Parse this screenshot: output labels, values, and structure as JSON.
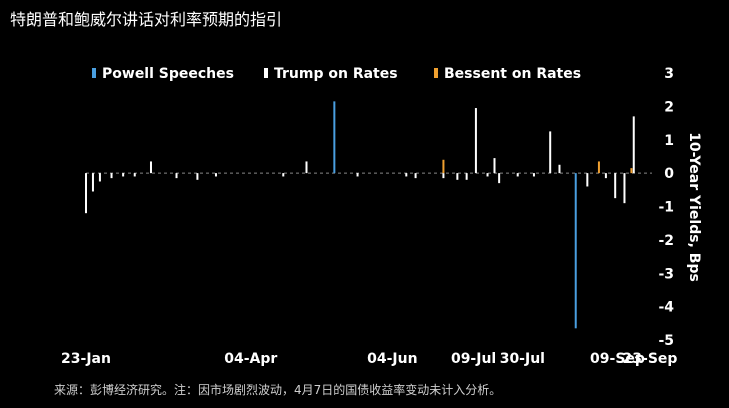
{
  "title": "特朗普和鲍威尔讲话对利率预期的指引",
  "source": "来源：彭博经济研究。注：因市场剧烈波动，4月7日的国债收益率变动未计入分析。",
  "colors": {
    "powell": "#4a9fe0",
    "trump": "#ffffff",
    "bessent": "#f0a030",
    "zero": "#888888",
    "bg": "#000000"
  },
  "chart_data": {
    "type": "bar",
    "ylabel": "10-Year Yields, Bps",
    "ylim": [
      -5,
      3
    ],
    "yticks": [
      "3",
      "2",
      "1",
      "0",
      "-1",
      "-2",
      "-3",
      "-4",
      "-5"
    ],
    "x_range": [
      "2025-01-23",
      "2025-09-23"
    ],
    "xticks": [
      {
        "date": "2025-01-23",
        "label": "23-Jan"
      },
      {
        "date": "2025-04-04",
        "label": "04-Apr"
      },
      {
        "date": "2025-06-04",
        "label": "04-Jun"
      },
      {
        "date": "2025-07-09",
        "label": "09-Jul"
      },
      {
        "date": "2025-07-30",
        "label": "30-Jul"
      },
      {
        "date": "2025-09-09",
        "label": "09-Sep"
      },
      {
        "date": "2025-09-23",
        "label": "23-Sep"
      }
    ],
    "legend": {
      "placement": "top",
      "items": [
        "Powell Speeches",
        "Trump on Rates",
        "Bessent on Rates"
      ]
    },
    "series": [
      {
        "name": "Powell Speeches",
        "points": [
          {
            "date": "2025-05-10",
            "value": 2.15
          },
          {
            "date": "2025-08-22",
            "value": -4.65
          }
        ]
      },
      {
        "name": "Trump on Rates",
        "points": [
          {
            "date": "2025-01-23",
            "value": -1.2
          },
          {
            "date": "2025-01-26",
            "value": -0.55
          },
          {
            "date": "2025-01-29",
            "value": -0.25
          },
          {
            "date": "2025-02-03",
            "value": -0.15
          },
          {
            "date": "2025-02-08",
            "value": -0.1
          },
          {
            "date": "2025-02-13",
            "value": -0.1
          },
          {
            "date": "2025-02-20",
            "value": 0.35
          },
          {
            "date": "2025-03-03",
            "value": -0.15
          },
          {
            "date": "2025-03-12",
            "value": -0.2
          },
          {
            "date": "2025-03-20",
            "value": -0.1
          },
          {
            "date": "2025-04-28",
            "value": 0.35
          },
          {
            "date": "2025-04-18",
            "value": -0.1
          },
          {
            "date": "2025-05-20",
            "value": -0.1
          },
          {
            "date": "2025-06-10",
            "value": -0.1
          },
          {
            "date": "2025-06-14",
            "value": -0.15
          },
          {
            "date": "2025-06-26",
            "value": -0.15
          },
          {
            "date": "2025-07-02",
            "value": -0.2
          },
          {
            "date": "2025-07-06",
            "value": -0.2
          },
          {
            "date": "2025-07-10",
            "value": 1.95
          },
          {
            "date": "2025-07-15",
            "value": -0.1
          },
          {
            "date": "2025-07-18",
            "value": 0.45
          },
          {
            "date": "2025-07-20",
            "value": -0.3
          },
          {
            "date": "2025-07-28",
            "value": -0.1
          },
          {
            "date": "2025-08-04",
            "value": -0.1
          },
          {
            "date": "2025-08-11",
            "value": 1.25
          },
          {
            "date": "2025-08-15",
            "value": 0.25
          },
          {
            "date": "2025-08-27",
            "value": -0.4
          },
          {
            "date": "2025-09-04",
            "value": -0.15
          },
          {
            "date": "2025-09-08",
            "value": -0.75
          },
          {
            "date": "2025-09-12",
            "value": -0.9
          },
          {
            "date": "2025-09-16",
            "value": 1.7
          }
        ]
      },
      {
        "name": "Bessent on Rates",
        "points": [
          {
            "date": "2025-06-26",
            "value": 0.4
          },
          {
            "date": "2025-09-01",
            "value": 0.35
          },
          {
            "date": "2025-09-15",
            "value": 0.15
          }
        ]
      }
    ]
  }
}
